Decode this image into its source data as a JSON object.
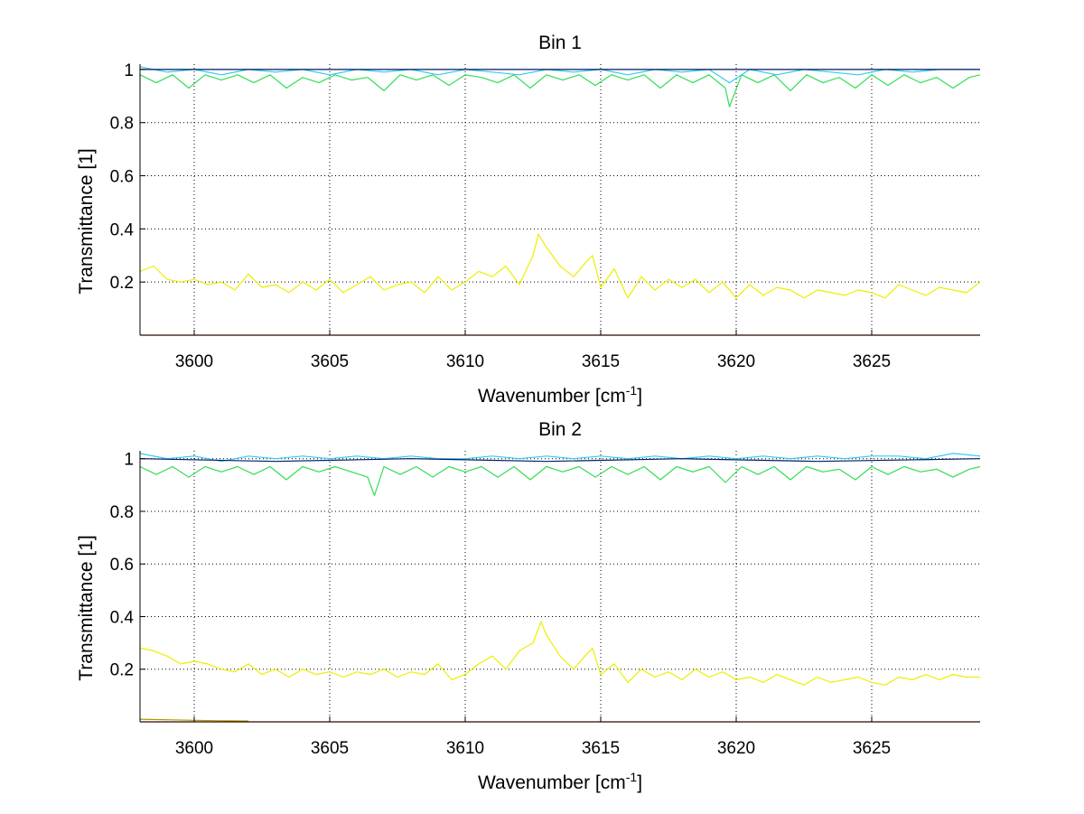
{
  "figure": {
    "background": "#ffffff"
  },
  "chart_data": [
    {
      "type": "line",
      "title": "Bin 1",
      "xlabel": "Wavenumber [cm",
      "xlabel_sup": "-1",
      "xlabel_suffix": "]",
      "ylabel": "Transmittance [1]",
      "xlim": [
        3598,
        3629
      ],
      "ylim": [
        0,
        1.02
      ],
      "xticks": [
        3600,
        3605,
        3610,
        3615,
        3620,
        3625
      ],
      "xtick_labels": [
        "3600",
        "3605",
        "3610",
        "3615",
        "3620",
        "3625"
      ],
      "yticks": [
        0.2,
        0.4,
        0.6,
        0.8,
        1
      ],
      "ytick_labels": [
        "0.2",
        "0.4",
        "0.6",
        "0.8",
        "1"
      ],
      "grid": true,
      "series": [
        {
          "name": "green",
          "color": "#33dd55",
          "x": [
            3598,
            3598.6,
            3599.2,
            3599.8,
            3600.4,
            3601,
            3601.6,
            3602.2,
            3602.8,
            3603.4,
            3604,
            3604.6,
            3605.2,
            3605.8,
            3606.4,
            3607,
            3607.6,
            3608.2,
            3608.8,
            3609.4,
            3610,
            3610.6,
            3611.2,
            3611.8,
            3612.4,
            3613,
            3613.6,
            3614.2,
            3614.8,
            3615.4,
            3616,
            3616.6,
            3617.2,
            3617.8,
            3618.4,
            3619,
            3619.6,
            3619.75,
            3620.2,
            3620.8,
            3621.4,
            3622,
            3622.6,
            3623.2,
            3623.8,
            3624.4,
            3625,
            3625.6,
            3626.2,
            3626.8,
            3627.4,
            3628,
            3628.6,
            3629
          ],
          "y": [
            0.98,
            0.95,
            0.98,
            0.93,
            0.98,
            0.96,
            0.98,
            0.95,
            0.98,
            0.93,
            0.97,
            0.95,
            0.98,
            0.96,
            0.97,
            0.92,
            0.98,
            0.96,
            0.98,
            0.94,
            0.98,
            0.97,
            0.95,
            0.98,
            0.93,
            0.98,
            0.96,
            0.98,
            0.94,
            0.98,
            0.96,
            0.98,
            0.93,
            0.98,
            0.95,
            0.98,
            0.93,
            0.86,
            0.98,
            0.95,
            0.98,
            0.92,
            0.98,
            0.95,
            0.97,
            0.93,
            0.98,
            0.94,
            0.98,
            0.95,
            0.97,
            0.93,
            0.97,
            0.98
          ]
        },
        {
          "name": "cyan",
          "color": "#33ccee",
          "x": [
            3598,
            3599,
            3600,
            3601,
            3602,
            3603,
            3604,
            3605,
            3606,
            3607,
            3608,
            3609,
            3610,
            3611,
            3612,
            3613,
            3614,
            3615,
            3616,
            3617,
            3618,
            3619,
            3619.75,
            3620.5,
            3621.5,
            3622.5,
            3623.5,
            3624.5,
            3625.5,
            3626.5,
            3627.5,
            3629
          ],
          "y": [
            1.01,
            0.99,
            1.0,
            0.98,
            1.0,
            0.99,
            1.0,
            0.98,
            1.0,
            0.99,
            1.0,
            0.98,
            1.0,
            0.99,
            0.98,
            1.0,
            0.99,
            1.0,
            0.98,
            1.0,
            0.99,
            1.0,
            0.95,
            1.0,
            0.98,
            1.0,
            0.99,
            0.98,
            1.0,
            0.99,
            1.0,
            1.0
          ]
        },
        {
          "name": "navy",
          "color": "#001a66",
          "x": [
            3598,
            3603,
            3608,
            3613,
            3618,
            3623,
            3629
          ],
          "y": [
            1.0,
            1.0,
            1.0,
            1.0,
            1.0,
            1.0,
            1.0
          ]
        },
        {
          "name": "yellow",
          "color": "#eeee00",
          "x": [
            3598,
            3598.5,
            3599,
            3599.5,
            3600,
            3600.5,
            3601,
            3601.5,
            3602,
            3602.5,
            3603,
            3603.5,
            3604,
            3604.5,
            3605,
            3605.5,
            3606,
            3606.5,
            3607,
            3607.5,
            3608,
            3608.5,
            3609,
            3609.5,
            3610,
            3610.5,
            3611,
            3611.5,
            3612,
            3612.5,
            3612.7,
            3613,
            3613.5,
            3614,
            3614.5,
            3614.7,
            3615,
            3615.5,
            3616,
            3616.5,
            3617,
            3617.5,
            3618,
            3618.5,
            3619,
            3619.5,
            3620,
            3620.5,
            3621,
            3621.5,
            3622,
            3622.5,
            3623,
            3623.5,
            3624,
            3624.5,
            3625,
            3625.5,
            3626,
            3626.5,
            3627,
            3627.5,
            3628,
            3628.5,
            3629
          ],
          "y": [
            0.24,
            0.26,
            0.21,
            0.2,
            0.21,
            0.19,
            0.2,
            0.17,
            0.23,
            0.18,
            0.19,
            0.16,
            0.2,
            0.17,
            0.21,
            0.16,
            0.19,
            0.22,
            0.17,
            0.19,
            0.2,
            0.16,
            0.22,
            0.17,
            0.2,
            0.24,
            0.22,
            0.26,
            0.19,
            0.3,
            0.38,
            0.33,
            0.26,
            0.22,
            0.28,
            0.3,
            0.18,
            0.25,
            0.14,
            0.22,
            0.17,
            0.21,
            0.18,
            0.21,
            0.16,
            0.2,
            0.14,
            0.19,
            0.15,
            0.18,
            0.17,
            0.14,
            0.17,
            0.16,
            0.15,
            0.17,
            0.16,
            0.14,
            0.19,
            0.17,
            0.15,
            0.18,
            0.17,
            0.16,
            0.2
          ]
        },
        {
          "name": "red",
          "color": "#dd2200",
          "x": [
            3598,
            3629
          ],
          "y": [
            0.0,
            0.0
          ]
        }
      ]
    },
    {
      "type": "line",
      "title": "Bin 2",
      "xlabel": "Wavenumber [cm",
      "xlabel_sup": "-1",
      "xlabel_suffix": "]",
      "ylabel": "Transmittance [1]",
      "xlim": [
        3598,
        3629
      ],
      "ylim": [
        0,
        1.03
      ],
      "xticks": [
        3600,
        3605,
        3610,
        3615,
        3620,
        3625
      ],
      "xtick_labels": [
        "3600",
        "3605",
        "3610",
        "3615",
        "3620",
        "3625"
      ],
      "yticks": [
        0.2,
        0.4,
        0.6,
        0.8,
        1
      ],
      "ytick_labels": [
        "0.2",
        "0.4",
        "0.6",
        "0.8",
        "1"
      ],
      "grid": true,
      "series": [
        {
          "name": "green",
          "color": "#33dd55",
          "x": [
            3598,
            3598.6,
            3599.2,
            3599.8,
            3600.4,
            3601,
            3601.6,
            3602.2,
            3602.8,
            3603.4,
            3604,
            3604.6,
            3605.2,
            3605.8,
            3606.4,
            3606.65,
            3607,
            3607.6,
            3608.2,
            3608.8,
            3609.4,
            3610,
            3610.6,
            3611.2,
            3611.8,
            3612.4,
            3613,
            3613.6,
            3614.2,
            3614.8,
            3615.4,
            3616,
            3616.6,
            3617.2,
            3617.8,
            3618.4,
            3619,
            3619.6,
            3620.2,
            3620.8,
            3621.4,
            3622,
            3622.6,
            3623.2,
            3623.8,
            3624.4,
            3625,
            3625.6,
            3626.2,
            3626.8,
            3627.4,
            3628,
            3628.6,
            3629
          ],
          "y": [
            0.97,
            0.94,
            0.97,
            0.93,
            0.97,
            0.95,
            0.97,
            0.94,
            0.97,
            0.92,
            0.97,
            0.95,
            0.97,
            0.95,
            0.93,
            0.86,
            0.97,
            0.94,
            0.97,
            0.93,
            0.97,
            0.95,
            0.97,
            0.93,
            0.97,
            0.92,
            0.97,
            0.95,
            0.97,
            0.93,
            0.97,
            0.94,
            0.97,
            0.92,
            0.97,
            0.95,
            0.97,
            0.91,
            0.97,
            0.94,
            0.97,
            0.92,
            0.97,
            0.95,
            0.96,
            0.92,
            0.97,
            0.94,
            0.97,
            0.95,
            0.96,
            0.93,
            0.96,
            0.97
          ]
        },
        {
          "name": "cyan",
          "color": "#33ccee",
          "x": [
            3598,
            3599,
            3600,
            3601,
            3602,
            3603,
            3604,
            3605,
            3606,
            3607,
            3608,
            3609,
            3610,
            3611,
            3612,
            3613,
            3614,
            3615,
            3616,
            3617,
            3618,
            3619,
            3620,
            3621,
            3622,
            3623,
            3624,
            3625,
            3626,
            3627,
            3628,
            3629
          ],
          "y": [
            1.02,
            1.0,
            1.01,
            0.99,
            1.01,
            1.0,
            1.01,
            1.0,
            1.01,
            1.0,
            1.01,
            1.0,
            1.0,
            1.01,
            1.0,
            1.01,
            1.0,
            1.01,
            1.0,
            1.01,
            1.0,
            1.01,
            1.0,
            1.01,
            1.0,
            1.01,
            1.0,
            1.01,
            1.01,
            1.0,
            1.02,
            1.01
          ]
        },
        {
          "name": "navy",
          "color": "#001a66",
          "x": [
            3598,
            3603,
            3608,
            3613,
            3618,
            3623,
            3629
          ],
          "y": [
            1.0,
            0.99,
            1.0,
            0.99,
            1.0,
            0.99,
            1.0
          ]
        },
        {
          "name": "yellow",
          "color": "#eeee00",
          "x": [
            3598,
            3598.5,
            3599,
            3599.5,
            3600,
            3600.5,
            3601,
            3601.5,
            3602,
            3602.5,
            3603,
            3603.5,
            3604,
            3604.5,
            3605,
            3605.5,
            3606,
            3606.5,
            3607,
            3607.5,
            3608,
            3608.5,
            3609,
            3609.5,
            3610,
            3610.5,
            3611,
            3611.5,
            3612,
            3612.5,
            3612.8,
            3613,
            3613.5,
            3614,
            3614.5,
            3614.7,
            3615,
            3615.5,
            3616,
            3616.5,
            3617,
            3617.5,
            3618,
            3618.5,
            3619,
            3619.5,
            3620,
            3620.5,
            3621,
            3621.5,
            3622,
            3622.5,
            3623,
            3623.5,
            3624,
            3624.5,
            3625,
            3625.5,
            3626,
            3626.5,
            3627,
            3627.5,
            3628,
            3628.5,
            3629
          ],
          "y": [
            0.28,
            0.27,
            0.25,
            0.22,
            0.23,
            0.22,
            0.2,
            0.19,
            0.22,
            0.18,
            0.2,
            0.17,
            0.2,
            0.18,
            0.19,
            0.17,
            0.19,
            0.18,
            0.2,
            0.17,
            0.19,
            0.18,
            0.22,
            0.16,
            0.18,
            0.22,
            0.25,
            0.2,
            0.27,
            0.3,
            0.38,
            0.33,
            0.25,
            0.2,
            0.26,
            0.28,
            0.18,
            0.22,
            0.15,
            0.2,
            0.17,
            0.19,
            0.16,
            0.2,
            0.17,
            0.19,
            0.16,
            0.17,
            0.15,
            0.18,
            0.16,
            0.14,
            0.17,
            0.15,
            0.16,
            0.17,
            0.15,
            0.14,
            0.17,
            0.16,
            0.18,
            0.16,
            0.18,
            0.17,
            0.17
          ]
        },
        {
          "name": "olive",
          "color": "#aa9900",
          "x": [
            3598,
            3599,
            3600,
            3601,
            3602
          ],
          "y": [
            0.01,
            0.008,
            0.006,
            0.004,
            0.003
          ]
        },
        {
          "name": "red",
          "color": "#dd2200",
          "x": [
            3598,
            3629
          ],
          "y": [
            0.0,
            0.0
          ]
        }
      ]
    }
  ]
}
